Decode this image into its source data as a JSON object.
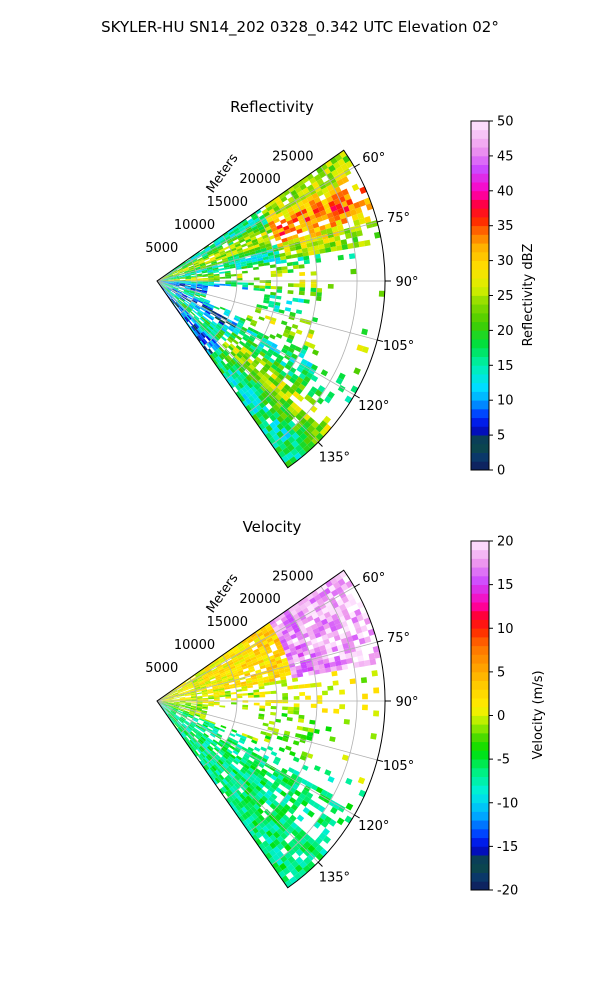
{
  "figure": {
    "suptitle": "SKYLER-HU  SN14_202  0328_0.342 UTC Elevation 02°"
  },
  "chart_data": [
    {
      "type": "heatmap",
      "projection": "polar-sector",
      "title": "Reflectivity",
      "range_label": "Meters",
      "range_ticks": [
        5000,
        10000,
        15000,
        20000,
        25000
      ],
      "range_max": 28500,
      "azimuth_range_deg": [
        55,
        145
      ],
      "azimuth_ticks": [
        "60°",
        "75°",
        "90°",
        "105°",
        "120°",
        "135°"
      ],
      "azimuth_tick_values": [
        60,
        75,
        90,
        105,
        120,
        135
      ],
      "grid": true,
      "colorbar": {
        "label": "Reflectivity dBZ",
        "min": 0,
        "max": 50,
        "ticks": [
          0,
          5,
          10,
          15,
          20,
          25,
          30,
          35,
          40,
          45,
          50
        ]
      }
    },
    {
      "type": "heatmap",
      "projection": "polar-sector",
      "title": "Velocity",
      "range_label": "Meters",
      "range_ticks": [
        5000,
        10000,
        15000,
        20000,
        25000
      ],
      "range_max": 28500,
      "azimuth_range_deg": [
        55,
        145
      ],
      "azimuth_ticks": [
        "60°",
        "75°",
        "90°",
        "105°",
        "120°",
        "135°"
      ],
      "azimuth_tick_values": [
        60,
        75,
        90,
        105,
        120,
        135
      ],
      "grid": true,
      "colorbar": {
        "label": "Velocity (m/s)",
        "min": -20,
        "max": 20,
        "ticks": [
          -20,
          -15,
          -10,
          -5,
          0,
          5,
          10,
          15,
          20
        ]
      }
    }
  ]
}
